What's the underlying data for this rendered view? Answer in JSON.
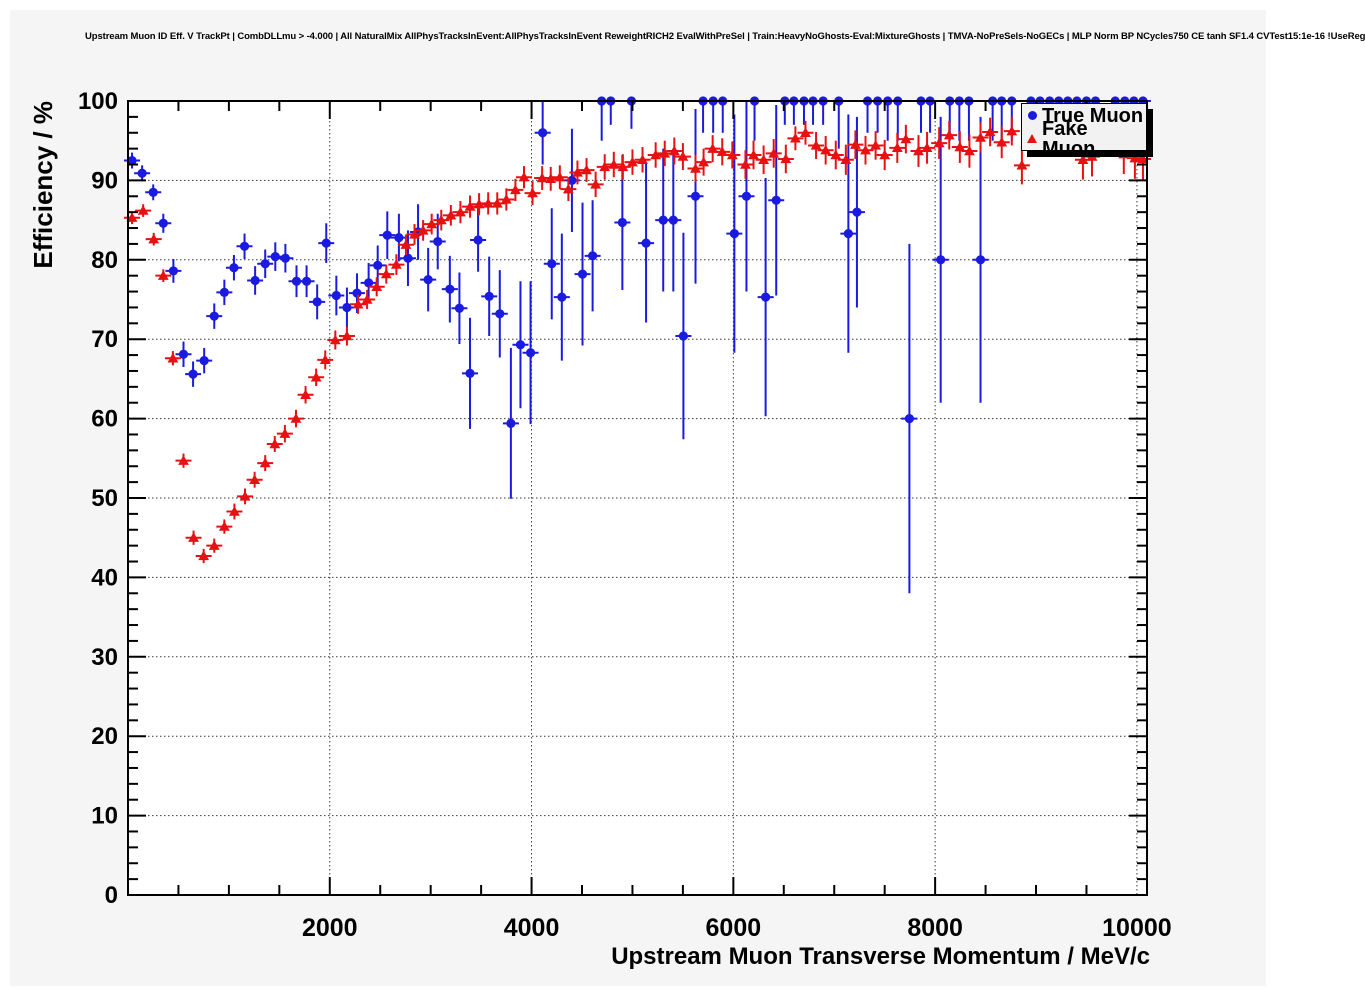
{
  "page_title": "Upstream Muon ID Eff. V TrackPt | CombDLLmu > -4.000 | All NaturalMix AllPhysTracksInEvent:AllPhysTracksInEvent ReweightRICH2 EvalWithPreSel | Train:HeavyNoGhosts-Eval:MixtureGhosts | TMVA-NoPreSels-NoGECs | MLP Norm BP NCycles750 CE tanh SF1.4 CVTest15:1e-16 !UseReg",
  "axes": {
    "y_label": "Efficiency / %",
    "x_label": "Upstream Muon Transverse Momentum / MeV/c",
    "y_ticks": [
      0,
      10,
      20,
      30,
      40,
      50,
      60,
      70,
      80,
      90,
      100
    ],
    "x_ticks": [
      2000,
      4000,
      6000,
      8000,
      10000
    ],
    "y_minor_step": 2,
    "x_minor_step": 500
  },
  "legend": {
    "entries": [
      {
        "label": "True Muon",
        "marker": "circle",
        "color": "#1a1ae0"
      },
      {
        "label": "Fake Muon",
        "marker": "triangle",
        "color": "#e81010"
      }
    ]
  },
  "colors": {
    "true_muon": "#1a1ae0",
    "fake_muon": "#e81010",
    "frame": "#000000",
    "grid": "#3a3a3a",
    "canvas_bg": "#f5f5f5",
    "plot_bg": "#ffffff",
    "legend_bg": "#f2f2f2"
  },
  "chart_data": {
    "type": "scatter",
    "title": "Upstream Muon ID Eff. V TrackPt | CombDLLmu > -4.000 | All NaturalMix AllPhysTracksInEvent:AllPhysTracksInEvent ReweightRICH2 EvalWithPreSel | Train:HeavyNoGhosts-Eval:MixtureGhosts | TMVA-NoPreSels-NoGECs | MLP Norm BP NCycles750 CE tanh SF1.4 CVTest15:1e-16 !UseReg",
    "xlabel": "Upstream Muon Transverse Momentum / MeV/c",
    "ylabel": "Efficiency / %",
    "xlim": [
      0,
      10100
    ],
    "ylim": [
      0,
      100
    ],
    "grid": true,
    "grid_style": "dotted",
    "legend_position": "top-right",
    "point_format": "[pT_MeV, efficiency_pct, err_pct]",
    "series": [
      {
        "name": "True Muon",
        "marker": "circle",
        "color": "#1a1ae0",
        "points": [
          [
            40,
            92.5,
            1
          ],
          [
            140,
            90.9,
            1
          ],
          [
            250,
            88.5,
            1
          ],
          [
            350,
            84.6,
            1.2
          ],
          [
            450,
            78.6,
            1.5
          ],
          [
            550,
            68.1,
            1.6
          ],
          [
            645,
            65.6,
            1.6
          ],
          [
            755,
            67.3,
            1.6
          ],
          [
            855,
            72.9,
            1.6
          ],
          [
            955,
            75.9,
            1.6
          ],
          [
            1050,
            79,
            1.6
          ],
          [
            1155,
            81.7,
            1.6
          ],
          [
            1260,
            77.4,
            1.8
          ],
          [
            1360,
            79.5,
            1.8
          ],
          [
            1460,
            80.4,
            1.8
          ],
          [
            1560,
            80.2,
            1.8
          ],
          [
            1670,
            77.3,
            2
          ],
          [
            1770,
            77.3,
            2
          ],
          [
            1875,
            74.7,
            2.2
          ],
          [
            1965,
            82.1,
            2.5
          ],
          [
            2065,
            75.5,
            2.5
          ],
          [
            2170,
            74,
            2.5
          ],
          [
            2270,
            75.8,
            2.5
          ],
          [
            2385,
            77.1,
            2.5
          ],
          [
            2475,
            79.3,
            2.5
          ],
          [
            2570,
            83.1,
            3
          ],
          [
            2685,
            82.8,
            3
          ],
          [
            2775,
            80.2,
            3.5
          ],
          [
            2875,
            83.5,
            3.5
          ],
          [
            2975,
            77.5,
            4
          ],
          [
            3070,
            82.3,
            3.5
          ],
          [
            3190,
            76.3,
            4.2
          ],
          [
            3285,
            73.9,
            4.5
          ],
          [
            3390,
            65.7,
            7
          ],
          [
            3470,
            82.5,
            4
          ],
          [
            3580,
            75.4,
            5
          ],
          [
            3685,
            73.2,
            5.5
          ],
          [
            3795,
            59.4,
            9.5
          ],
          [
            3890,
            69.3,
            8
          ],
          [
            3990,
            68.3,
            9
          ],
          [
            4110,
            96,
            4
          ],
          [
            4200,
            79.5,
            7
          ],
          [
            4300,
            75.3,
            8
          ],
          [
            4400,
            90,
            6.5
          ],
          [
            4505,
            78.2,
            9
          ],
          [
            4605,
            80.5,
            7
          ],
          [
            4695,
            100,
            5
          ],
          [
            4785,
            100,
            3
          ],
          [
            4900,
            84.7,
            8.5
          ],
          [
            4990,
            100,
            3.5
          ],
          [
            5135,
            82.1,
            10
          ],
          [
            5305,
            85,
            9
          ],
          [
            5405,
            85,
            9
          ],
          [
            5505,
            70.4,
            13
          ],
          [
            5625,
            88,
            11
          ],
          [
            5700,
            100,
            4
          ],
          [
            5800,
            100,
            4
          ],
          [
            5895,
            100,
            4
          ],
          [
            6010,
            83.3,
            15
          ],
          [
            6130,
            88,
            12
          ],
          [
            6210,
            100,
            5
          ],
          [
            6320,
            75.3,
            15
          ],
          [
            6425,
            87.5,
            12
          ],
          [
            6510,
            100,
            3
          ],
          [
            6600,
            100,
            3
          ],
          [
            6700,
            100,
            3
          ],
          [
            6790,
            100,
            3
          ],
          [
            6890,
            100,
            3
          ],
          [
            7045,
            100,
            6
          ],
          [
            7140,
            83.3,
            15
          ],
          [
            7225,
            86,
            12
          ],
          [
            7330,
            100,
            4
          ],
          [
            7430,
            100,
            4
          ],
          [
            7530,
            100,
            5
          ],
          [
            7630,
            100,
            5
          ],
          [
            7745,
            60,
            22
          ],
          [
            7860,
            100,
            4
          ],
          [
            7950,
            100,
            4
          ],
          [
            8055,
            80,
            18
          ],
          [
            8145,
            100,
            5
          ],
          [
            8240,
            100,
            5
          ],
          [
            8335,
            100,
            5
          ],
          [
            8450,
            80,
            18
          ],
          [
            8570,
            100,
            5
          ],
          [
            8660,
            100,
            5
          ],
          [
            8760,
            100,
            5
          ],
          [
            8950,
            100,
            4
          ],
          [
            9040,
            100,
            4
          ],
          [
            9135,
            100,
            4
          ],
          [
            9225,
            100,
            4
          ],
          [
            9315,
            100,
            4
          ],
          [
            9405,
            100,
            4
          ],
          [
            9500,
            100,
            4
          ],
          [
            9590,
            100,
            4
          ],
          [
            9785,
            100,
            3
          ],
          [
            9880,
            100,
            3
          ],
          [
            9970,
            100,
            3
          ],
          [
            10060,
            100,
            3
          ]
        ]
      },
      {
        "name": "Fake Muon",
        "marker": "triangle",
        "color": "#e81010",
        "points": [
          [
            40,
            85.3,
            0.8
          ],
          [
            150,
            86.2,
            0.8
          ],
          [
            255,
            82.6,
            0.8
          ],
          [
            350,
            78,
            0.8
          ],
          [
            445,
            67.6,
            0.9
          ],
          [
            550,
            54.7,
            0.9
          ],
          [
            650,
            45,
            0.9
          ],
          [
            750,
            42.7,
            0.9
          ],
          [
            855,
            44,
            0.9
          ],
          [
            955,
            46.4,
            0.9
          ],
          [
            1055,
            48.3,
            1
          ],
          [
            1160,
            50.2,
            1
          ],
          [
            1255,
            52.3,
            1
          ],
          [
            1360,
            54.4,
            1
          ],
          [
            1455,
            56.8,
            1
          ],
          [
            1555,
            58.1,
            1.1
          ],
          [
            1665,
            60,
            1.1
          ],
          [
            1760,
            63,
            1.1
          ],
          [
            1865,
            65.2,
            1.1
          ],
          [
            1955,
            67.4,
            1.2
          ],
          [
            2055,
            69.9,
            1.2
          ],
          [
            2170,
            70.4,
            1.2
          ],
          [
            2280,
            74.4,
            1.2
          ],
          [
            2370,
            75,
            1.2
          ],
          [
            2465,
            76.6,
            1.2
          ],
          [
            2560,
            78.2,
            1.2
          ],
          [
            2660,
            79.4,
            1.3
          ],
          [
            2755,
            81.9,
            1.3
          ],
          [
            2840,
            83.2,
            1.3
          ],
          [
            2925,
            83.7,
            1.3
          ],
          [
            3010,
            84.5,
            1.3
          ],
          [
            3105,
            85,
            1.3
          ],
          [
            3200,
            85.6,
            1.3
          ],
          [
            3295,
            86,
            1.4
          ],
          [
            3390,
            86.7,
            1.4
          ],
          [
            3480,
            87,
            1.4
          ],
          [
            3570,
            87.1,
            1.4
          ],
          [
            3660,
            87.1,
            1.4
          ],
          [
            3750,
            87.6,
            1.4
          ],
          [
            3840,
            88.8,
            1.4
          ],
          [
            3925,
            90.4,
            1.4
          ],
          [
            4010,
            88.4,
            1.5
          ],
          [
            4105,
            90.3,
            1.5
          ],
          [
            4190,
            90.2,
            1.5
          ],
          [
            4280,
            90.4,
            1.5
          ],
          [
            4365,
            88.9,
            1.5
          ],
          [
            4455,
            91,
            1.5
          ],
          [
            4545,
            91.3,
            1.5
          ],
          [
            4635,
            89.5,
            1.6
          ],
          [
            4725,
            91.7,
            1.6
          ],
          [
            4815,
            92,
            1.6
          ],
          [
            4905,
            91.7,
            1.6
          ],
          [
            5000,
            92.3,
            1.6
          ],
          [
            5100,
            92.6,
            1.6
          ],
          [
            5230,
            93.2,
            1.6
          ],
          [
            5320,
            93.4,
            1.6
          ],
          [
            5415,
            93.7,
            1.7
          ],
          [
            5500,
            93,
            1.7
          ],
          [
            5625,
            91.5,
            1.7
          ],
          [
            5705,
            92.3,
            1.7
          ],
          [
            5795,
            94,
            1.7
          ],
          [
            5890,
            93.6,
            1.7
          ],
          [
            5990,
            93.2,
            1.7
          ],
          [
            6120,
            92,
            1.8
          ],
          [
            6200,
            93.2,
            1.8
          ],
          [
            6300,
            92.6,
            1.8
          ],
          [
            6400,
            93.4,
            1.8
          ],
          [
            6520,
            92.7,
            1.8
          ],
          [
            6615,
            95.3,
            1.5
          ],
          [
            6715,
            96,
            1.5
          ],
          [
            6820,
            94.4,
            1.7
          ],
          [
            6915,
            93.8,
            1.8
          ],
          [
            7015,
            93.2,
            1.8
          ],
          [
            7115,
            92.6,
            1.9
          ],
          [
            7210,
            94.5,
            1.8
          ],
          [
            7310,
            93.8,
            1.8
          ],
          [
            7410,
            94.4,
            1.8
          ],
          [
            7500,
            93.2,
            1.9
          ],
          [
            7625,
            94.1,
            1.9
          ],
          [
            7710,
            95.2,
            1.8
          ],
          [
            7835,
            93.7,
            2
          ],
          [
            7920,
            94.1,
            2
          ],
          [
            8040,
            94.7,
            2
          ],
          [
            8140,
            95.7,
            1.8
          ],
          [
            8245,
            94.2,
            2
          ],
          [
            8340,
            93.7,
            2.1
          ],
          [
            8450,
            95.4,
            1.9
          ],
          [
            8545,
            96.1,
            1.8
          ],
          [
            8660,
            94.8,
            2
          ],
          [
            8760,
            96.2,
            1.8
          ],
          [
            8860,
            91.9,
            2.4
          ],
          [
            9465,
            92.6,
            2.5
          ],
          [
            9555,
            93,
            2.5
          ],
          [
            9870,
            93.3,
            2.5
          ],
          [
            9980,
            92.8,
            2.6
          ],
          [
            10060,
            92.7,
            2.6
          ]
        ]
      }
    ]
  }
}
